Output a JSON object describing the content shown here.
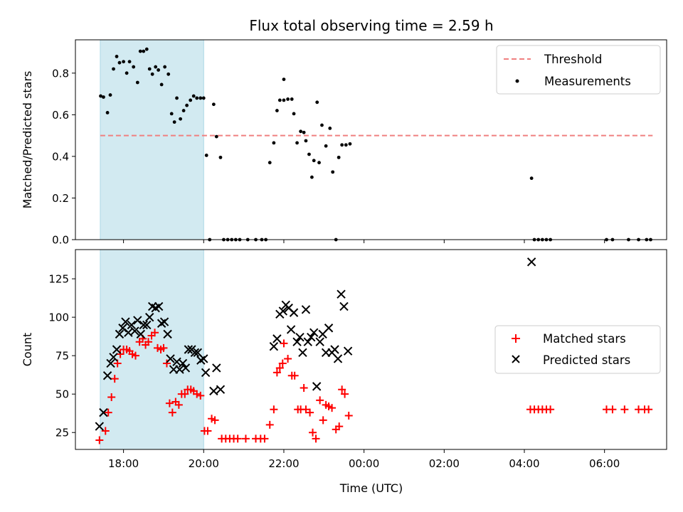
{
  "chart_data": {
    "title": "Flux total observing time = 2.59 h",
    "xlabel": "Time (UTC)",
    "x_tick_labels": [
      "18:00",
      "20:00",
      "22:00",
      "00:00",
      "02:00",
      "04:00",
      "06:00"
    ],
    "x_tick_hours": [
      18,
      20,
      22,
      24,
      26,
      28,
      30
    ],
    "xlim_hours": [
      16.8,
      31.55
    ],
    "shaded_region": {
      "start_hour": 17.42,
      "end_hour": 20.0,
      "color": "#add8e6"
    },
    "panels": [
      {
        "type": "scatter",
        "ylabel": "Matched/Predicted stars",
        "ylim": [
          0,
          0.96
        ],
        "yticks": [
          0.0,
          0.2,
          0.4,
          0.6,
          0.8
        ],
        "ytick_labels": [
          "0.0",
          "0.2",
          "0.4",
          "0.6",
          "0.8"
        ],
        "legend_position": "top-right",
        "threshold": {
          "name": "Threshold",
          "value": 0.5,
          "x_range": [
            17.42,
            31.2
          ],
          "color": "#f08080"
        },
        "series": [
          {
            "name": "Measurements",
            "marker": "dot",
            "color": "#000000",
            "points": [
              [
                17.43,
                0.69
              ],
              [
                17.5,
                0.685
              ],
              [
                17.6,
                0.61
              ],
              [
                17.67,
                0.695
              ],
              [
                17.75,
                0.82
              ],
              [
                17.83,
                0.88
              ],
              [
                17.9,
                0.85
              ],
              [
                18.0,
                0.855
              ],
              [
                18.08,
                0.8
              ],
              [
                18.15,
                0.855
              ],
              [
                18.25,
                0.83
              ],
              [
                18.35,
                0.755
              ],
              [
                18.42,
                0.905
              ],
              [
                18.5,
                0.905
              ],
              [
                18.58,
                0.915
              ],
              [
                18.65,
                0.82
              ],
              [
                18.72,
                0.795
              ],
              [
                18.8,
                0.83
              ],
              [
                18.87,
                0.815
              ],
              [
                18.95,
                0.745
              ],
              [
                19.03,
                0.83
              ],
              [
                19.12,
                0.795
              ],
              [
                19.2,
                0.605
              ],
              [
                19.27,
                0.565
              ],
              [
                19.33,
                0.68
              ],
              [
                19.42,
                0.58
              ],
              [
                19.5,
                0.62
              ],
              [
                19.58,
                0.645
              ],
              [
                19.67,
                0.67
              ],
              [
                19.75,
                0.69
              ],
              [
                19.83,
                0.68
              ],
              [
                19.92,
                0.68
              ],
              [
                20.0,
                0.68
              ],
              [
                20.07,
                0.405
              ],
              [
                20.15,
                0.0
              ],
              [
                20.25,
                0.65
              ],
              [
                20.32,
                0.495
              ],
              [
                20.42,
                0.395
              ],
              [
                20.5,
                0.0
              ],
              [
                20.6,
                0.0
              ],
              [
                20.7,
                0.0
              ],
              [
                20.8,
                0.0
              ],
              [
                20.9,
                0.0
              ],
              [
                21.1,
                0.0
              ],
              [
                21.3,
                0.0
              ],
              [
                21.45,
                0.0
              ],
              [
                21.55,
                0.0
              ],
              [
                21.65,
                0.37
              ],
              [
                21.75,
                0.465
              ],
              [
                21.83,
                0.62
              ],
              [
                21.9,
                0.67
              ],
              [
                22.0,
                0.67
              ],
              [
                22.0,
                0.77
              ],
              [
                22.1,
                0.675
              ],
              [
                22.2,
                0.675
              ],
              [
                22.25,
                0.605
              ],
              [
                22.33,
                0.465
              ],
              [
                22.42,
                0.52
              ],
              [
                22.5,
                0.515
              ],
              [
                22.55,
                0.475
              ],
              [
                22.63,
                0.41
              ],
              [
                22.7,
                0.3
              ],
              [
                22.75,
                0.38
              ],
              [
                22.83,
                0.66
              ],
              [
                22.88,
                0.37
              ],
              [
                22.95,
                0.55
              ],
              [
                23.05,
                0.45
              ],
              [
                23.15,
                0.535
              ],
              [
                23.22,
                0.325
              ],
              [
                23.3,
                0.0
              ],
              [
                23.37,
                0.395
              ],
              [
                23.45,
                0.455
              ],
              [
                23.55,
                0.455
              ],
              [
                23.65,
                0.46
              ],
              [
                28.18,
                0.295
              ],
              [
                28.25,
                0.0
              ],
              [
                28.35,
                0.0
              ],
              [
                28.45,
                0.0
              ],
              [
                28.55,
                0.0
              ],
              [
                28.65,
                0.0
              ],
              [
                30.05,
                0.0
              ],
              [
                30.2,
                0.0
              ],
              [
                30.6,
                0.0
              ],
              [
                30.85,
                0.0
              ],
              [
                31.05,
                0.0
              ],
              [
                31.15,
                0.0
              ]
            ]
          }
        ]
      },
      {
        "type": "scatter",
        "ylabel": "Count",
        "ylim": [
          14,
          144
        ],
        "yticks": [
          25,
          50,
          75,
          100,
          125
        ],
        "ytick_labels": [
          "25",
          "50",
          "75",
          "100",
          "125"
        ],
        "legend_position": "center-right",
        "series": [
          {
            "name": "Matched stars",
            "marker": "plus",
            "color": "#ff0000",
            "points": [
              [
                17.4,
                20
              ],
              [
                17.55,
                26
              ],
              [
                17.62,
                38
              ],
              [
                17.7,
                48
              ],
              [
                17.78,
                60
              ],
              [
                17.85,
                70
              ],
              [
                17.92,
                76
              ],
              [
                18.0,
                79
              ],
              [
                18.08,
                79
              ],
              [
                18.15,
                78
              ],
              [
                18.22,
                76
              ],
              [
                18.3,
                75
              ],
              [
                18.4,
                84
              ],
              [
                18.48,
                86
              ],
              [
                18.55,
                82
              ],
              [
                18.62,
                84
              ],
              [
                18.7,
                88
              ],
              [
                18.78,
                90
              ],
              [
                18.85,
                80
              ],
              [
                18.93,
                79
              ],
              [
                19.0,
                80
              ],
              [
                19.08,
                70
              ],
              [
                19.15,
                44
              ],
              [
                19.22,
                38
              ],
              [
                19.3,
                45
              ],
              [
                19.38,
                43
              ],
              [
                19.45,
                50
              ],
              [
                19.53,
                50
              ],
              [
                19.6,
                53
              ],
              [
                19.68,
                53
              ],
              [
                19.75,
                52
              ],
              [
                19.83,
                50
              ],
              [
                19.92,
                49
              ],
              [
                20.02,
                26
              ],
              [
                20.1,
                26
              ],
              [
                20.2,
                34
              ],
              [
                20.28,
                33
              ],
              [
                20.45,
                21
              ],
              [
                20.55,
                21
              ],
              [
                20.65,
                21
              ],
              [
                20.75,
                21
              ],
              [
                20.85,
                21
              ],
              [
                21.05,
                21
              ],
              [
                21.3,
                21
              ],
              [
                21.42,
                21
              ],
              [
                21.52,
                21
              ],
              [
                21.65,
                30
              ],
              [
                21.75,
                40
              ],
              [
                21.83,
                64
              ],
              [
                21.9,
                67
              ],
              [
                21.97,
                70
              ],
              [
                22.0,
                83
              ],
              [
                22.1,
                73
              ],
              [
                22.2,
                62
              ],
              [
                22.27,
                62
              ],
              [
                22.35,
                40
              ],
              [
                22.42,
                40
              ],
              [
                22.5,
                54
              ],
              [
                22.55,
                40
              ],
              [
                22.65,
                38
              ],
              [
                22.72,
                25
              ],
              [
                22.8,
                21
              ],
              [
                22.9,
                46
              ],
              [
                22.98,
                33
              ],
              [
                23.05,
                43
              ],
              [
                23.12,
                42
              ],
              [
                23.2,
                41
              ],
              [
                23.3,
                27
              ],
              [
                23.38,
                29
              ],
              [
                23.45,
                53
              ],
              [
                23.52,
                50
              ],
              [
                23.62,
                36
              ],
              [
                28.15,
                40
              ],
              [
                28.25,
                40
              ],
              [
                28.35,
                40
              ],
              [
                28.45,
                40
              ],
              [
                28.55,
                40
              ],
              [
                28.65,
                40
              ],
              [
                30.05,
                40
              ],
              [
                30.2,
                40
              ],
              [
                30.5,
                40
              ],
              [
                30.85,
                40
              ],
              [
                31.0,
                40
              ],
              [
                31.1,
                40
              ]
            ]
          },
          {
            "name": "Predicted stars",
            "marker": "x",
            "color": "#000000",
            "points": [
              [
                17.4,
                29
              ],
              [
                17.5,
                38
              ],
              [
                17.6,
                62
              ],
              [
                17.68,
                70
              ],
              [
                17.75,
                74
              ],
              [
                17.83,
                79
              ],
              [
                17.9,
                89
              ],
              [
                17.98,
                93
              ],
              [
                18.05,
                97
              ],
              [
                18.12,
                90
              ],
              [
                18.2,
                95
              ],
              [
                18.28,
                91
              ],
              [
                18.35,
                98
              ],
              [
                18.43,
                89
              ],
              [
                18.5,
                95
              ],
              [
                18.58,
                95
              ],
              [
                18.65,
                100
              ],
              [
                18.72,
                107
              ],
              [
                18.8,
                106
              ],
              [
                18.88,
                107
              ],
              [
                18.95,
                96
              ],
              [
                19.02,
                97
              ],
              [
                19.1,
                89
              ],
              [
                19.17,
                73
              ],
              [
                19.25,
                66
              ],
              [
                19.33,
                71
              ],
              [
                19.4,
                66
              ],
              [
                19.48,
                70
              ],
              [
                19.55,
                67
              ],
              [
                19.62,
                79
              ],
              [
                19.7,
                79
              ],
              [
                19.78,
                77
              ],
              [
                19.85,
                77
              ],
              [
                19.93,
                72
              ],
              [
                20.0,
                73
              ],
              [
                20.05,
                64
              ],
              [
                20.25,
                52
              ],
              [
                20.32,
                67
              ],
              [
                20.42,
                53
              ],
              [
                21.75,
                81
              ],
              [
                21.83,
                86
              ],
              [
                21.9,
                102
              ],
              [
                21.98,
                104
              ],
              [
                22.05,
                108
              ],
              [
                22.12,
                106
              ],
              [
                22.18,
                92
              ],
              [
                22.25,
                103
              ],
              [
                22.33,
                84
              ],
              [
                22.4,
                87
              ],
              [
                22.47,
                77
              ],
              [
                22.55,
                105
              ],
              [
                22.6,
                84
              ],
              [
                22.68,
                87
              ],
              [
                22.75,
                90
              ],
              [
                22.82,
                55
              ],
              [
                22.9,
                84
              ],
              [
                22.97,
                89
              ],
              [
                23.05,
                77
              ],
              [
                23.12,
                93
              ],
              [
                23.2,
                77
              ],
              [
                23.27,
                79
              ],
              [
                23.35,
                73
              ],
              [
                23.43,
                115
              ],
              [
                23.5,
                107
              ],
              [
                23.6,
                78
              ],
              [
                28.18,
                136
              ]
            ]
          }
        ]
      }
    ]
  }
}
